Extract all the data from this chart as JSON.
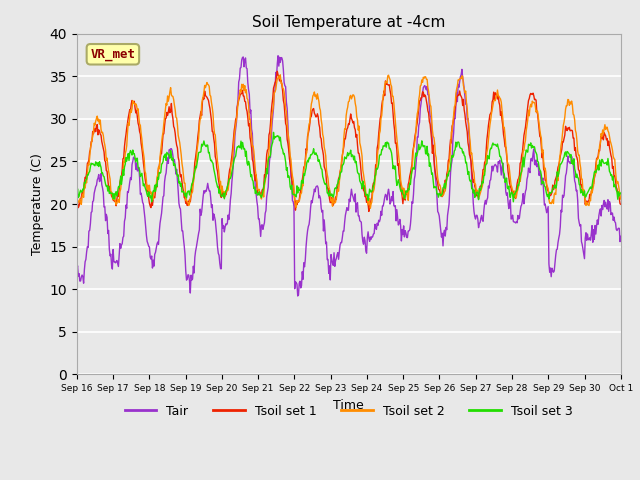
{
  "title": "Soil Temperature at -4cm",
  "xlabel": "Time",
  "ylabel": "Temperature (C)",
  "ylim": [
    0,
    40
  ],
  "yticks": [
    0,
    5,
    10,
    15,
    20,
    25,
    30,
    35,
    40
  ],
  "bg_color": "#e8e8e8",
  "grid_color": "#ffffff",
  "colors": {
    "Tair": "#9932CC",
    "Tsoil1": "#EE2200",
    "Tsoil2": "#FF8C00",
    "Tsoil3": "#22DD00"
  },
  "annotation_text": "VR_met",
  "annotation_color": "#8B0000",
  "annotation_bg": "#FFFFAA",
  "annotation_edge": "#AAAA66",
  "legend_labels": [
    "Tair",
    "Tsoil set 1",
    "Tsoil set 2",
    "Tsoil set 3"
  ],
  "x_labels": [
    "Sep 16",
    "Sep 17",
    "Sep 18",
    "Sep 19",
    "Sep 20",
    "Sep 21",
    "Sep 22",
    "Sep 23",
    "Sep 24",
    "Sep 25",
    "Sep 26",
    "Sep 27",
    "Sep 28",
    "Sep 29",
    "Sep 30",
    "Oct 1"
  ],
  "n_days": 15,
  "n_pts_per_day": 48
}
